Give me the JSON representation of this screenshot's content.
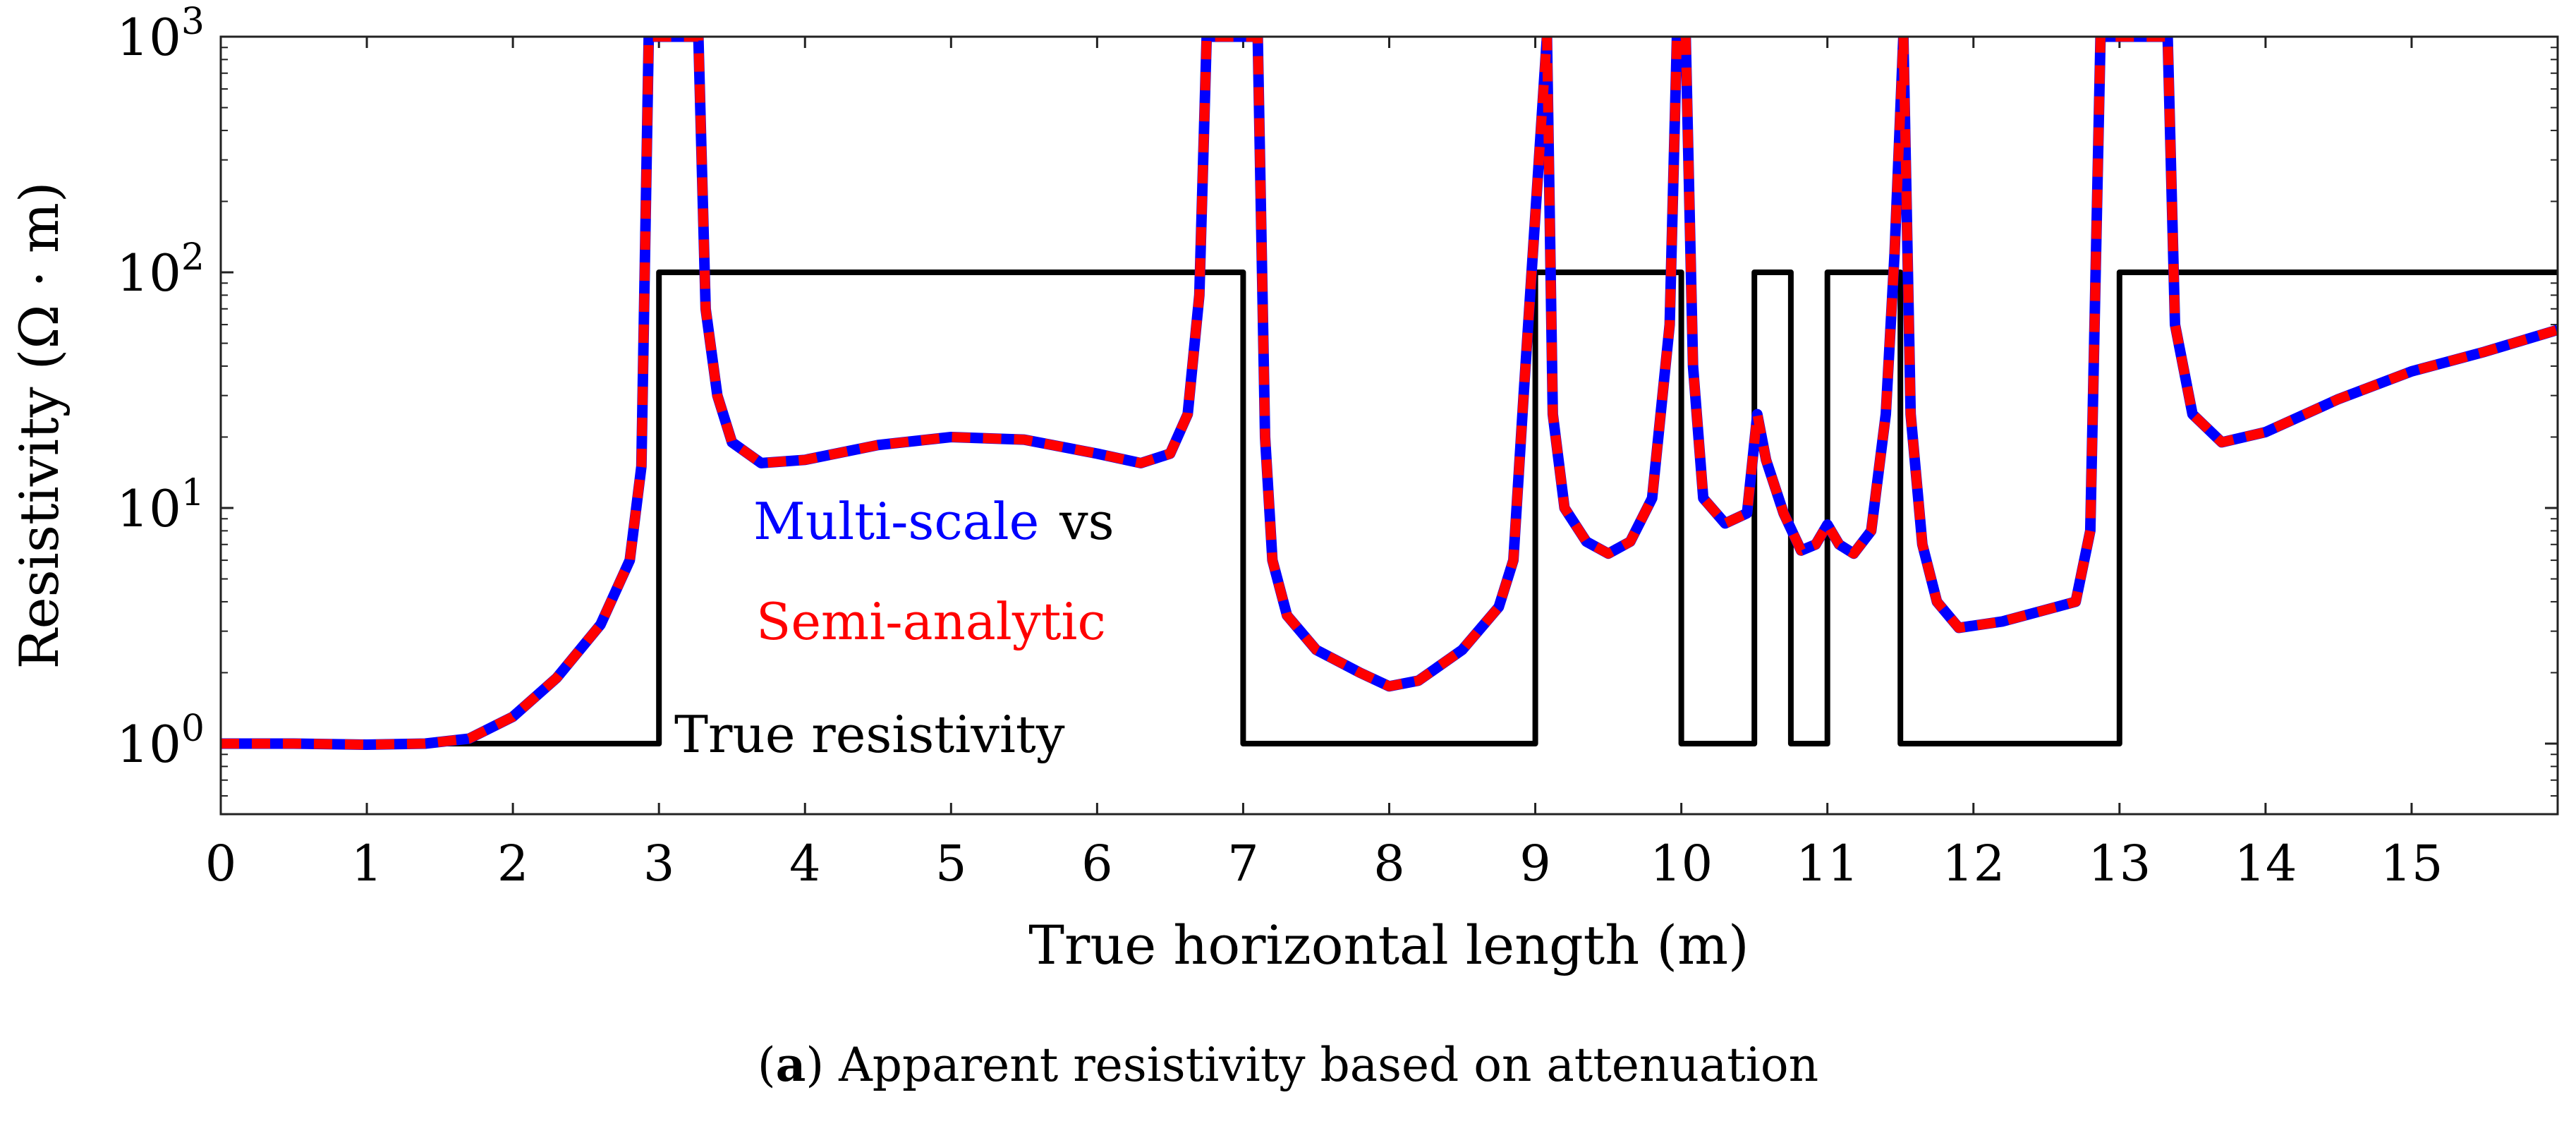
{
  "chart_data": {
    "type": "line",
    "ylabel": "Resistivity (Ω · m)",
    "xlabel": "True horizontal length (m)",
    "xlim": [
      0,
      16
    ],
    "ylim": [
      0.5,
      1000
    ],
    "yscale": "log",
    "x_ticks": [
      "0",
      "1",
      "2",
      "3",
      "4",
      "5",
      "6",
      "7",
      "8",
      "9",
      "10",
      "11",
      "12",
      "13",
      "14",
      "15"
    ],
    "y_ticks": [
      {
        "value": 1,
        "base": "10",
        "exp": "0"
      },
      {
        "value": 10,
        "base": "10",
        "exp": "1"
      },
      {
        "value": 100,
        "base": "10",
        "exp": "2"
      },
      {
        "value": 1000,
        "base": "10",
        "exp": "3"
      }
    ],
    "annotations": {
      "multi_scale": "Multi-scale",
      "vs": "vs",
      "semi_analytic": "Semi-analytic",
      "true_resistivity": "True resistivity"
    },
    "series": [
      {
        "name": "True resistivity",
        "color": "#000000",
        "style": "step",
        "x": [
          0,
          3,
          3,
          7,
          7,
          9,
          9,
          10,
          10,
          10.5,
          10.5,
          10.75,
          10.75,
          11,
          11,
          11.5,
          11.5,
          13,
          13,
          16
        ],
        "y": [
          1,
          1,
          100,
          100,
          1,
          1,
          100,
          100,
          1,
          1,
          100,
          100,
          1,
          1,
          100,
          100,
          1,
          1,
          100,
          100
        ]
      },
      {
        "name": "Multi-scale",
        "color": "#0000ff",
        "style": "solid",
        "x": [
          0,
          0.5,
          1.0,
          1.4,
          1.7,
          2.0,
          2.3,
          2.6,
          2.8,
          2.88,
          2.93,
          3.27,
          3.32,
          3.4,
          3.5,
          3.7,
          4.0,
          4.5,
          5.0,
          5.5,
          6.0,
          6.3,
          6.5,
          6.62,
          6.7,
          6.75,
          7.1,
          7.15,
          7.2,
          7.3,
          7.5,
          7.8,
          8.0,
          8.2,
          8.5,
          8.75,
          8.85,
          8.92,
          9.08,
          9.12,
          9.2,
          9.35,
          9.5,
          9.65,
          9.8,
          9.92,
          9.97,
          10.03,
          10.08,
          10.15,
          10.3,
          10.45,
          10.52,
          10.58,
          10.7,
          10.82,
          10.92,
          11.0,
          11.08,
          11.18,
          11.3,
          11.4,
          11.46,
          11.52,
          11.57,
          11.65,
          11.75,
          11.9,
          12.2,
          12.7,
          12.8,
          12.87,
          13.33,
          13.38,
          13.5,
          13.7,
          14.0,
          14.5,
          15.0,
          15.5,
          16.0
        ],
        "y": [
          1.0,
          1.0,
          0.99,
          1.0,
          1.05,
          1.3,
          1.9,
          3.2,
          6.0,
          15,
          1000,
          1000,
          70,
          30,
          19,
          15.5,
          16,
          18.5,
          20,
          19.5,
          17,
          15.5,
          17,
          25,
          80,
          1000,
          1000,
          20,
          6,
          3.5,
          2.5,
          2.0,
          1.75,
          1.85,
          2.5,
          3.8,
          6,
          30,
          1000,
          25,
          10,
          7.2,
          6.4,
          7.2,
          11,
          60,
          1000,
          1000,
          40,
          11,
          8.6,
          9.5,
          25,
          16,
          9.5,
          6.6,
          7,
          8.5,
          7,
          6.4,
          8,
          25,
          120,
          1000,
          25,
          7,
          4,
          3.1,
          3.3,
          4,
          8,
          1000,
          1000,
          60,
          25,
          19,
          21,
          29,
          38,
          46,
          57
        ]
      },
      {
        "name": "Semi-analytic",
        "color": "#ff0000",
        "style": "dashed",
        "x": [
          0,
          0.5,
          1.0,
          1.4,
          1.7,
          2.0,
          2.3,
          2.6,
          2.8,
          2.88,
          2.93,
          3.27,
          3.32,
          3.4,
          3.5,
          3.7,
          4.0,
          4.5,
          5.0,
          5.5,
          6.0,
          6.3,
          6.5,
          6.62,
          6.7,
          6.75,
          7.1,
          7.15,
          7.2,
          7.3,
          7.5,
          7.8,
          8.0,
          8.2,
          8.5,
          8.75,
          8.85,
          8.92,
          9.08,
          9.12,
          9.2,
          9.35,
          9.5,
          9.65,
          9.8,
          9.92,
          9.97,
          10.03,
          10.08,
          10.15,
          10.3,
          10.45,
          10.52,
          10.58,
          10.7,
          10.82,
          10.92,
          11.0,
          11.08,
          11.18,
          11.3,
          11.4,
          11.46,
          11.52,
          11.57,
          11.65,
          11.75,
          11.9,
          12.2,
          12.7,
          12.8,
          12.87,
          13.33,
          13.38,
          13.5,
          13.7,
          14.0,
          14.5,
          15.0,
          15.5,
          16.0
        ],
        "y": [
          1.0,
          1.0,
          0.99,
          1.0,
          1.05,
          1.3,
          1.9,
          3.2,
          6.0,
          15,
          1000,
          1000,
          70,
          30,
          19,
          15.5,
          16,
          18.5,
          20,
          19.5,
          17,
          15.5,
          17,
          25,
          80,
          1000,
          1000,
          20,
          6,
          3.5,
          2.5,
          2.0,
          1.75,
          1.85,
          2.5,
          3.8,
          6,
          30,
          1000,
          25,
          10,
          7.2,
          6.4,
          7.2,
          11,
          60,
          1000,
          1000,
          40,
          11,
          8.6,
          9.5,
          25,
          16,
          9.5,
          6.6,
          7,
          8.5,
          7,
          6.4,
          8,
          25,
          120,
          1000,
          25,
          7,
          4,
          3.1,
          3.3,
          4,
          8,
          1000,
          1000,
          60,
          25,
          19,
          21,
          29,
          38,
          46,
          57
        ]
      }
    ]
  },
  "caption": {
    "label": "a",
    "text": " Apparent resistivity based on attenuation"
  }
}
